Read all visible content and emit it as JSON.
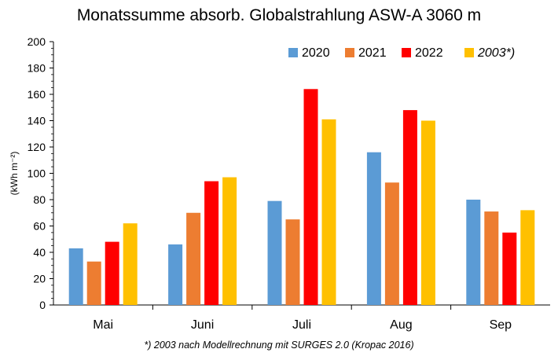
{
  "chart_data": {
    "type": "bar",
    "title": "Monatssumme absorb. Globalstrahlung ASW-A 3060 m",
    "ylabel": "(kWh m⁻²)",
    "xlabel": "",
    "categories": [
      "Mai",
      "Juni",
      "Juli",
      "Aug",
      "Sep"
    ],
    "ylim": [
      0,
      200
    ],
    "yticks": [
      "0",
      "20",
      "40",
      "60",
      "80",
      "100",
      "120",
      "140",
      "160",
      "180",
      "200"
    ],
    "grid": false,
    "legend_position": "top-right",
    "series": [
      {
        "name": "2020",
        "color": "#5B9BD5",
        "italic": false,
        "values": [
          43,
          46,
          79,
          116,
          80
        ]
      },
      {
        "name": "2021",
        "color": "#ED7D31",
        "italic": false,
        "values": [
          33,
          70,
          65,
          93,
          71
        ]
      },
      {
        "name": "2022",
        "color": "#FF0000",
        "italic": false,
        "values": [
          48,
          94,
          164,
          148,
          55
        ]
      },
      {
        "name": "2003*)",
        "color": "#FFC000",
        "italic": true,
        "values": [
          62,
          97,
          141,
          140,
          72
        ]
      }
    ],
    "footnote": "*) 2003 nach Modellrechnung  mit SURGES 2.0  (Kropac 2016)"
  }
}
